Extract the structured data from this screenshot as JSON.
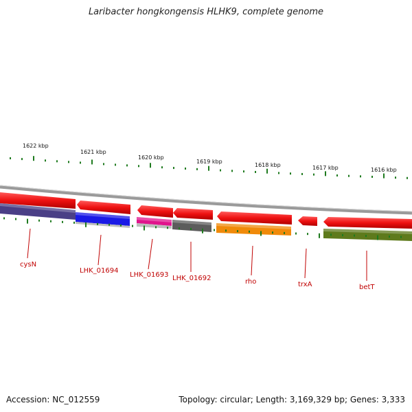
{
  "title": "Laribacter hongkongensis HLHK9, complete genome",
  "footer": {
    "accession": "Accession: NC_012559",
    "summary": "Topology: circular; Length: 3,169,329 bp; Genes: 3,333"
  },
  "ruler": {
    "unit": "kbp",
    "labels": [
      "1622 kbp",
      "1621 kbp",
      "1620 kbp",
      "1619 kbp",
      "1618 kbp",
      "1617 kbp",
      "1616 kbp"
    ]
  },
  "colors": {
    "forward_arrow": "#ee1111",
    "backbone": "#888888",
    "tick_green": "#1e7a1e",
    "label_red": "#c00000"
  },
  "genes": [
    {
      "label": "cysN",
      "color": "#4a3f86"
    },
    {
      "label": "LHK_01694",
      "color": "#1a1ae6"
    },
    {
      "label": "LHK_01693",
      "color": "#e0148c"
    },
    {
      "label": "LHK_01692",
      "color": "#5c5c5c"
    },
    {
      "label": "rho",
      "color": "#f08a0a"
    },
    {
      "label": "trxA",
      "color": "#d81020"
    },
    {
      "label": "betT",
      "color": "#5e7a1c"
    }
  ]
}
